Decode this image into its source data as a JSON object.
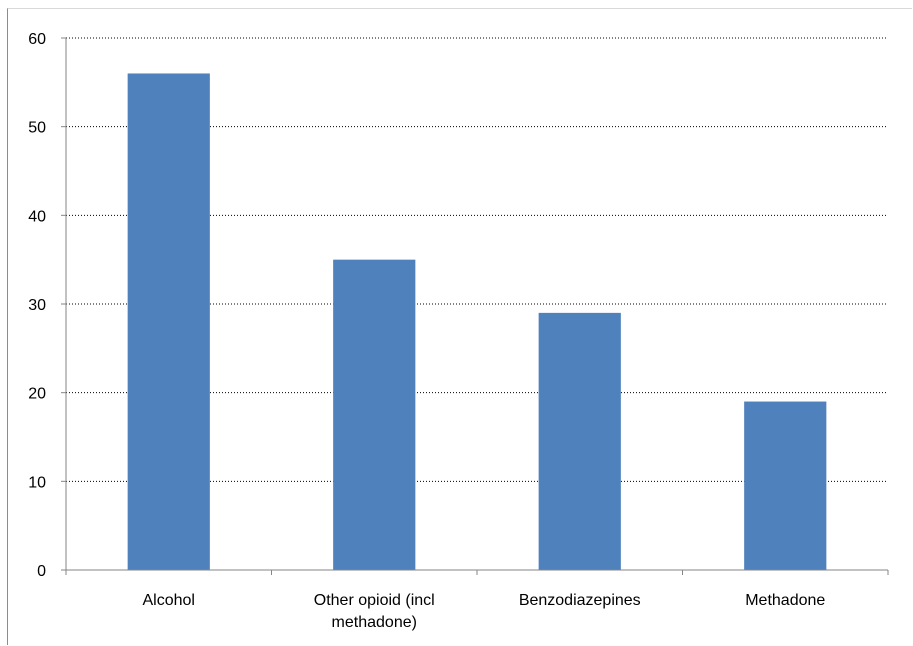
{
  "chart_data": {
    "type": "bar",
    "title": "",
    "xlabel": "",
    "ylabel": "",
    "categories": [
      "Alcohol",
      "Other opioid (incl methadone)",
      "Benzodiazepines",
      "Methadone"
    ],
    "category_label_lines": [
      [
        "Alcohol"
      ],
      [
        "Other opioid (incl",
        "methadone)"
      ],
      [
        "Benzodiazepines"
      ],
      [
        "Methadone"
      ]
    ],
    "values": [
      56,
      35,
      29,
      19
    ],
    "ylim": [
      0,
      60
    ],
    "yticks": [
      "0",
      "10",
      "20",
      "30",
      "40",
      "50",
      "60"
    ],
    "grid": "horizontal dotted",
    "legend": "none",
    "bar_color": "#4f81bd"
  }
}
